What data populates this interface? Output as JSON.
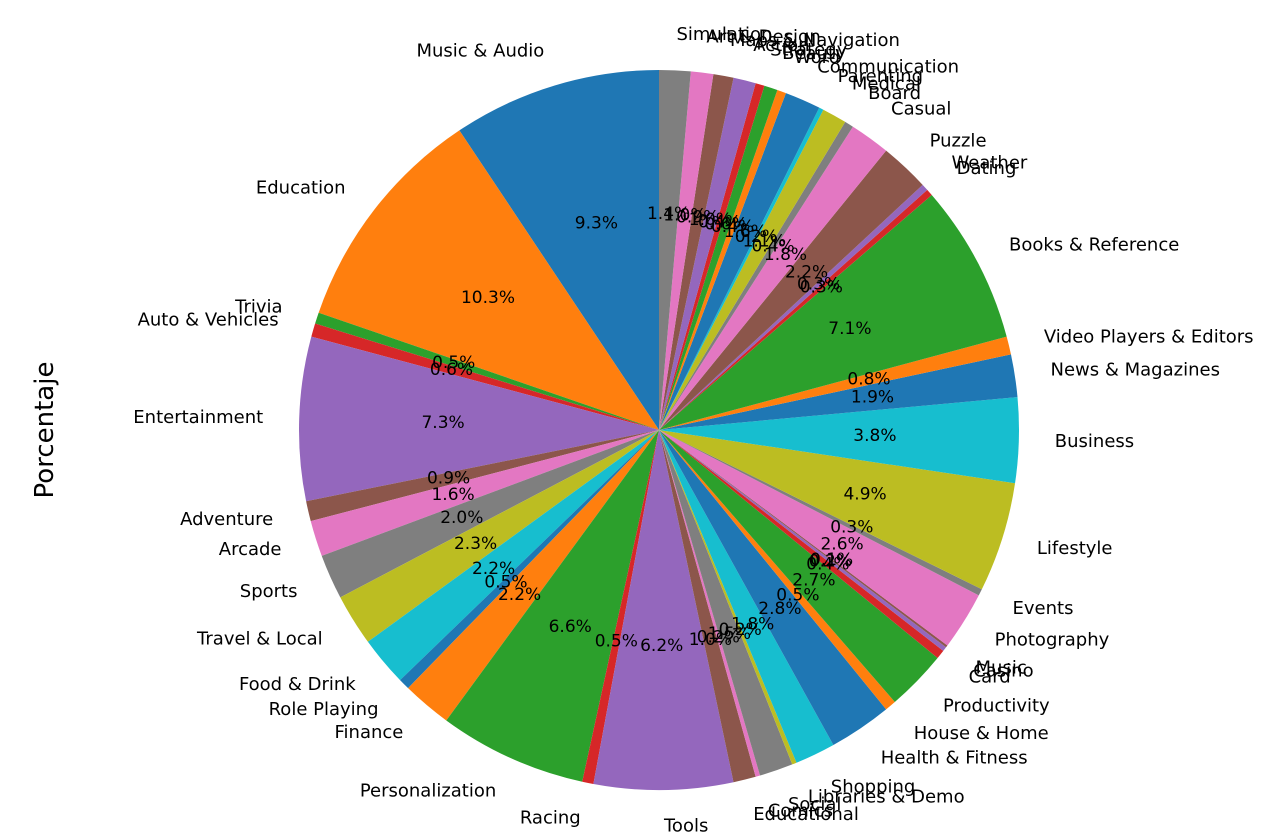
{
  "chart_data": {
    "type": "pie",
    "ylabel": "Porcentaje",
    "start_angle_deg": 90,
    "direction": "counterclockwise",
    "slices": [
      {
        "label": "Music & Audio",
        "value": 9.3,
        "pct_label": "9.3%",
        "color": "#1f77b4"
      },
      {
        "label": "Education",
        "value": 10.3,
        "pct_label": "10.3%",
        "color": "#ff7f0e"
      },
      {
        "label": "Trivia",
        "value": 0.5,
        "pct_label": "0.5%",
        "color": "#2ca02c"
      },
      {
        "label": "Auto & Vehicles",
        "value": 0.6,
        "pct_label": "0.6%",
        "color": "#d62728"
      },
      {
        "label": "Entertainment",
        "value": 7.3,
        "pct_label": "7.3%",
        "color": "#9467bd"
      },
      {
        "label": "Adventure",
        "value": 0.9,
        "pct_label": "0.9%",
        "color": "#8c564b"
      },
      {
        "label": "Arcade",
        "value": 1.6,
        "pct_label": "1.6%",
        "color": "#e377c2"
      },
      {
        "label": "Sports",
        "value": 2.0,
        "pct_label": "2.0%",
        "color": "#7f7f7f"
      },
      {
        "label": "Travel & Local",
        "value": 2.3,
        "pct_label": "2.3%",
        "color": "#bcbd22"
      },
      {
        "label": "Food & Drink",
        "value": 2.2,
        "pct_label": "2.2%",
        "color": "#17becf"
      },
      {
        "label": "Role Playing",
        "value": 0.5,
        "pct_label": "0.5%",
        "color": "#1f77b4"
      },
      {
        "label": "Finance",
        "value": 2.2,
        "pct_label": "2.2%",
        "color": "#ff7f0e"
      },
      {
        "label": "Personalization",
        "value": 6.6,
        "pct_label": "6.6%",
        "color": "#2ca02c"
      },
      {
        "label": "Racing",
        "value": 0.5,
        "pct_label": "0.5%",
        "color": "#d62728"
      },
      {
        "label": "Tools",
        "value": 6.2,
        "pct_label": "6.2%",
        "color": "#9467bd"
      },
      {
        "label": "Educational",
        "value": 1.0,
        "pct_label": "1.0%",
        "color": "#8c564b"
      },
      {
        "label": "Comics",
        "value": 0.2,
        "pct_label": "0.2%",
        "color": "#e377c2"
      },
      {
        "label": "Social",
        "value": 1.5,
        "pct_label": "1.5%",
        "color": "#7f7f7f"
      },
      {
        "label": "Libraries & Demo",
        "value": 0.2,
        "pct_label": "0.2%",
        "color": "#bcbd22"
      },
      {
        "label": "Shopping",
        "value": 1.8,
        "pct_label": "1.8%",
        "color": "#17becf"
      },
      {
        "label": "Health & Fitness",
        "value": 2.8,
        "pct_label": "2.8%",
        "color": "#1f77b4"
      },
      {
        "label": "House & Home",
        "value": 0.5,
        "pct_label": "0.5%",
        "color": "#ff7f0e"
      },
      {
        "label": "Productivity",
        "value": 2.7,
        "pct_label": "2.7%",
        "color": "#2ca02c"
      },
      {
        "label": "Card",
        "value": 0.4,
        "pct_label": "0.4%",
        "color": "#d62728"
      },
      {
        "label": "Casino",
        "value": 0.2,
        "pct_label": "0.2%",
        "color": "#9467bd"
      },
      {
        "label": "Music",
        "value": 0.1,
        "pct_label": "0.1%",
        "color": "#8c564b"
      },
      {
        "label": "Photography",
        "value": 2.6,
        "pct_label": "2.6%",
        "color": "#e377c2"
      },
      {
        "label": "Events",
        "value": 0.3,
        "pct_label": "0.3%",
        "color": "#7f7f7f"
      },
      {
        "label": "Lifestyle",
        "value": 4.9,
        "pct_label": "4.9%",
        "color": "#bcbd22"
      },
      {
        "label": "Business",
        "value": 3.8,
        "pct_label": "3.8%",
        "color": "#17becf"
      },
      {
        "label": "News & Magazines",
        "value": 1.9,
        "pct_label": "1.9%",
        "color": "#1f77b4"
      },
      {
        "label": "Video Players & Editors",
        "value": 0.8,
        "pct_label": "0.8%",
        "color": "#ff7f0e"
      },
      {
        "label": "Books & Reference",
        "value": 7.1,
        "pct_label": "7.1%",
        "color": "#2ca02c"
      },
      {
        "label": "Dating",
        "value": 0.3,
        "pct_label": "0.3%",
        "color": "#d62728"
      },
      {
        "label": "Weather",
        "value": 0.3,
        "pct_label": "0.3%",
        "color": "#9467bd"
      },
      {
        "label": "Puzzle",
        "value": 2.2,
        "pct_label": "2.2%",
        "color": "#8c564b"
      },
      {
        "label": "Casual",
        "value": 1.8,
        "pct_label": "1.8%",
        "color": "#e377c2"
      },
      {
        "label": "Board",
        "value": 0.4,
        "pct_label": "0.4%",
        "color": "#7f7f7f"
      },
      {
        "label": "Medical",
        "value": 1.1,
        "pct_label": "1.1%",
        "color": "#bcbd22"
      },
      {
        "label": "Parenting",
        "value": 0.2,
        "pct_label": "0.2%",
        "color": "#17becf"
      },
      {
        "label": "Communication",
        "value": 1.6,
        "pct_label": "1.6%",
        "color": "#1f77b4"
      },
      {
        "label": "Word",
        "value": 0.4,
        "pct_label": "0.4%",
        "color": "#ff7f0e"
      },
      {
        "label": "Beauty",
        "value": 0.6,
        "pct_label": "0.6%",
        "color": "#2ca02c"
      },
      {
        "label": "Strategy",
        "value": 0.4,
        "pct_label": "0.4%",
        "color": "#d62728"
      },
      {
        "label": "Action",
        "value": 1.0,
        "pct_label": "1.0%",
        "color": "#9467bd"
      },
      {
        "label": "Maps & Navigation",
        "value": 0.9,
        "pct_label": "0.9%",
        "color": "#8c564b"
      },
      {
        "label": "Art & Design",
        "value": 1.0,
        "pct_label": "1.0%",
        "color": "#e377c2"
      },
      {
        "label": "Simulation",
        "value": 1.4,
        "pct_label": "1.4%",
        "color": "#7f7f7f"
      }
    ]
  }
}
